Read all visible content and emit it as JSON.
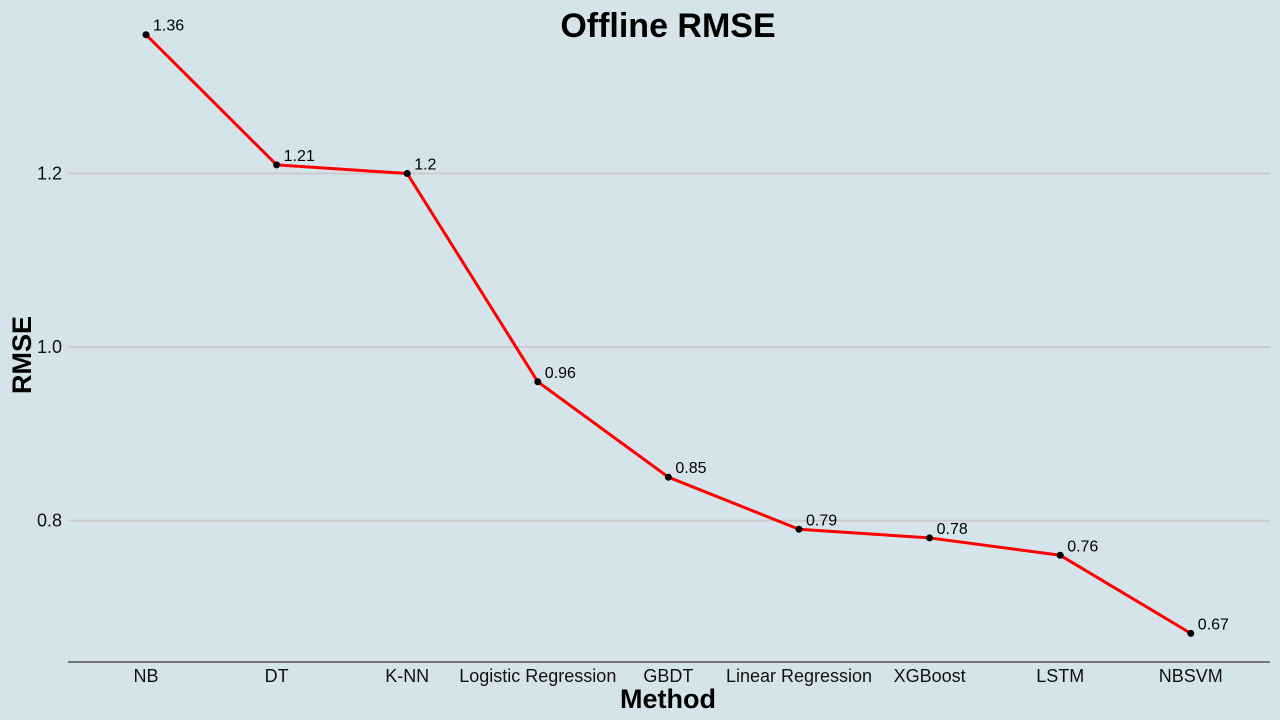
{
  "chart_data": {
    "type": "line",
    "title": "Offline RMSE",
    "xlabel": "Method",
    "ylabel": "RMSE",
    "categories": [
      "NB",
      "DT",
      "K-NN",
      "Logistic Regression",
      "GBDT",
      "Linear Regression",
      "XGBoost",
      "LSTM",
      "NBSVM"
    ],
    "series": [
      {
        "values": [
          1.36,
          1.21,
          1.2,
          0.96,
          0.85,
          0.79,
          0.78,
          0.76,
          0.67
        ],
        "data_labels": [
          "1.36",
          "1.21",
          "1.2",
          "0.96",
          "0.85",
          "0.79",
          "0.78",
          "0.76",
          "0.67"
        ],
        "color": "#ff0000"
      }
    ],
    "yticks": [
      0.8,
      1.0,
      1.2
    ],
    "ytick_labels": [
      "0.8",
      "1.0",
      "1.2"
    ],
    "ylim": [
      0.637,
      1.4
    ],
    "grid": "horizontal",
    "background": "#d5e4eb",
    "legend": "none"
  }
}
